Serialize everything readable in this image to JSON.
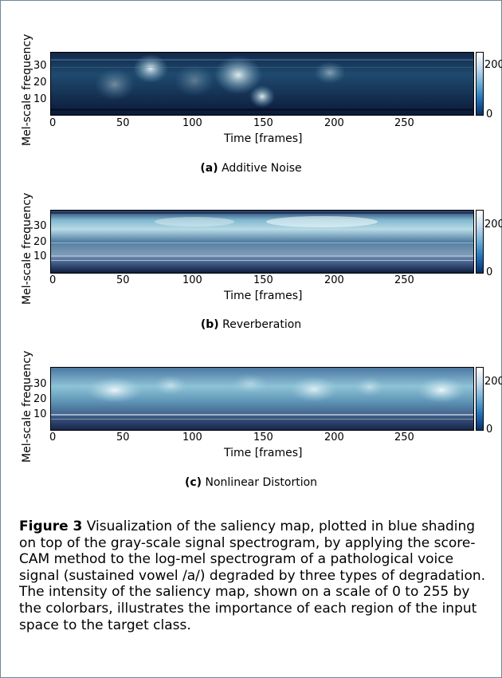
{
  "figure": {
    "caption_label": "Figure 3",
    "caption_text": "Visualization of the saliency map, plotted in blue shading on top of the gray-scale signal spectrogram, by applying the score-CAM method to the log-mel spectrogram of a pathological voice signal (sustained vowel /a/) degraded by three types of degradation. The intensity of the saliency map, shown on a scale of 0 to 255 by the colorbars, illustrates the importance of each region of the input space to the target class."
  },
  "panels": [
    {
      "label": "(a)",
      "title": "Additive Noise",
      "ylabel": "Mel-scale frequency",
      "xlabel": "Time [frames]",
      "xticks": [
        "0",
        "50",
        "100",
        "150",
        "200",
        "250"
      ],
      "yticks": [
        "30",
        "20",
        "10"
      ],
      "cbar_ticks": [
        "200",
        "0"
      ]
    },
    {
      "label": "(b)",
      "title": "Reverberation",
      "ylabel": "Mel-scale frequency",
      "xlabel": "Time [frames]",
      "xticks": [
        "0",
        "50",
        "100",
        "150",
        "200",
        "250"
      ],
      "yticks": [
        "30",
        "20",
        "10"
      ],
      "cbar_ticks": [
        "200",
        "0"
      ]
    },
    {
      "label": "(c)",
      "title": "Nonlinear Distortion",
      "ylabel": "Mel-scale frequency",
      "xlabel": "Time [frames]",
      "xticks": [
        "0",
        "50",
        "100",
        "150",
        "200",
        "250"
      ],
      "yticks": [
        "30",
        "20",
        "10"
      ],
      "cbar_ticks": [
        "200",
        "0"
      ]
    }
  ],
  "colors": {
    "background": "#ffffff",
    "saliency_dark": "#0b1a3a",
    "saliency_mid": "#3f7ea6",
    "saliency_light": "#d8eef5",
    "frame_border": "#6e879a"
  }
}
